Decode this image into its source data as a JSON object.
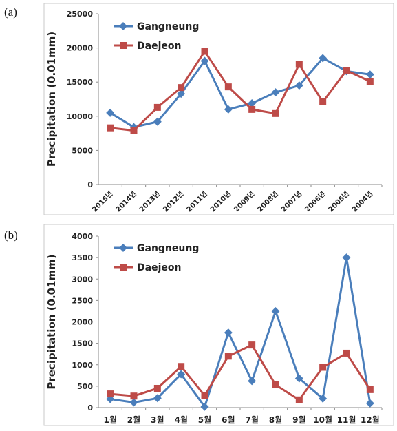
{
  "panels": {
    "a_label": "(a)",
    "b_label": "(b)"
  },
  "colors": {
    "gangneung": "#4a7ebb",
    "daejeon": "#be4b48",
    "axis": "#888888",
    "frame": "#c8c8c8"
  },
  "chart_data": [
    {
      "type": "line",
      "title": "",
      "xlabel": "",
      "ylabel": "Precipitation (0.01mm)",
      "ylim": [
        0,
        25000
      ],
      "yticks": [
        0,
        5000,
        10000,
        15000,
        20000,
        25000
      ],
      "grid": false,
      "legend_position": "top-left",
      "categories": [
        "2015년",
        "2014년",
        "2013년",
        "2012년",
        "2011년",
        "2010년",
        "2009년",
        "2008년",
        "2007년",
        "2006년",
        "2005년",
        "2004년"
      ],
      "series": [
        {
          "name": "Gangneung",
          "marker": "diamond",
          "color": "#4a7ebb",
          "values": [
            10500,
            8400,
            9200,
            13300,
            18100,
            11000,
            11900,
            13500,
            14500,
            18500,
            16600,
            16100
          ]
        },
        {
          "name": "Daejeon",
          "marker": "square",
          "color": "#be4b48",
          "values": [
            8300,
            7900,
            11300,
            14200,
            19500,
            14300,
            11000,
            10400,
            17600,
            12100,
            16700,
            15100
          ]
        }
      ]
    },
    {
      "type": "line",
      "title": "",
      "xlabel": "",
      "ylabel": "Precipitation (0.01mm)",
      "ylim": [
        0,
        4000
      ],
      "yticks": [
        0,
        500,
        1000,
        1500,
        2000,
        2500,
        3000,
        3500,
        4000
      ],
      "grid": false,
      "legend_position": "top-left",
      "categories": [
        "1월",
        "2월",
        "3월",
        "4월",
        "5월",
        "6월",
        "7월",
        "8월",
        "9월",
        "10월",
        "11월",
        "12월"
      ],
      "series": [
        {
          "name": "Gangneung",
          "marker": "diamond",
          "color": "#4a7ebb",
          "values": [
            200,
            120,
            220,
            780,
            20,
            1750,
            620,
            2250,
            680,
            210,
            3500,
            100
          ]
        },
        {
          "name": "Daejeon",
          "marker": "square",
          "color": "#be4b48",
          "values": [
            320,
            270,
            450,
            960,
            280,
            1200,
            1460,
            530,
            180,
            940,
            1270,
            420
          ]
        }
      ]
    }
  ]
}
